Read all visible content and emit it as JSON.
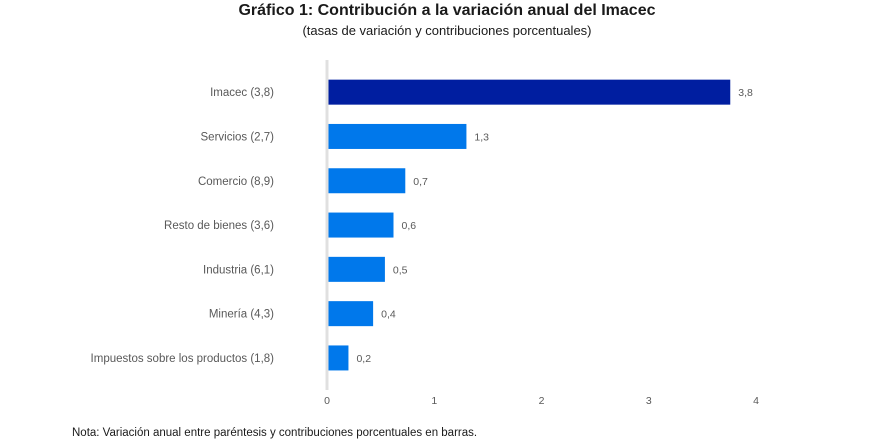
{
  "chart_data": {
    "type": "bar",
    "orientation": "horizontal",
    "title": "Gráfico 1: Contribución a la variación anual del Imacec",
    "subtitle": "(tasas de variación y contribuciones porcentuales)",
    "xlabel": "",
    "ylabel": "",
    "xlim": [
      0,
      4
    ],
    "xticks": [
      "0",
      "1",
      "2",
      "3",
      "4"
    ],
    "grid": false,
    "legend": "none",
    "categories": [
      "Imacec (3,8)",
      "Servicios (2,7)",
      "Comercio (8,9)",
      "Resto de bienes (3,6)",
      "Industria (6,1)",
      "Minería (4,3)",
      "Impuestos sobre los productos (1,8)"
    ],
    "values": [
      3.76,
      1.3,
      0.73,
      0.62,
      0.54,
      0.43,
      0.2
    ],
    "value_labels": [
      "3,8",
      "1,3",
      "0,7",
      "0,6",
      "0,5",
      "0,4",
      "0,2"
    ],
    "colors": [
      "#001ea0",
      "#0078eb",
      "#0078eb",
      "#0078eb",
      "#0078eb",
      "#0078eb",
      "#0078eb"
    ],
    "axis_color": "#e0e0e0",
    "note": "Nota: Variación anual entre paréntesis y contribuciones porcentuales en barras."
  }
}
